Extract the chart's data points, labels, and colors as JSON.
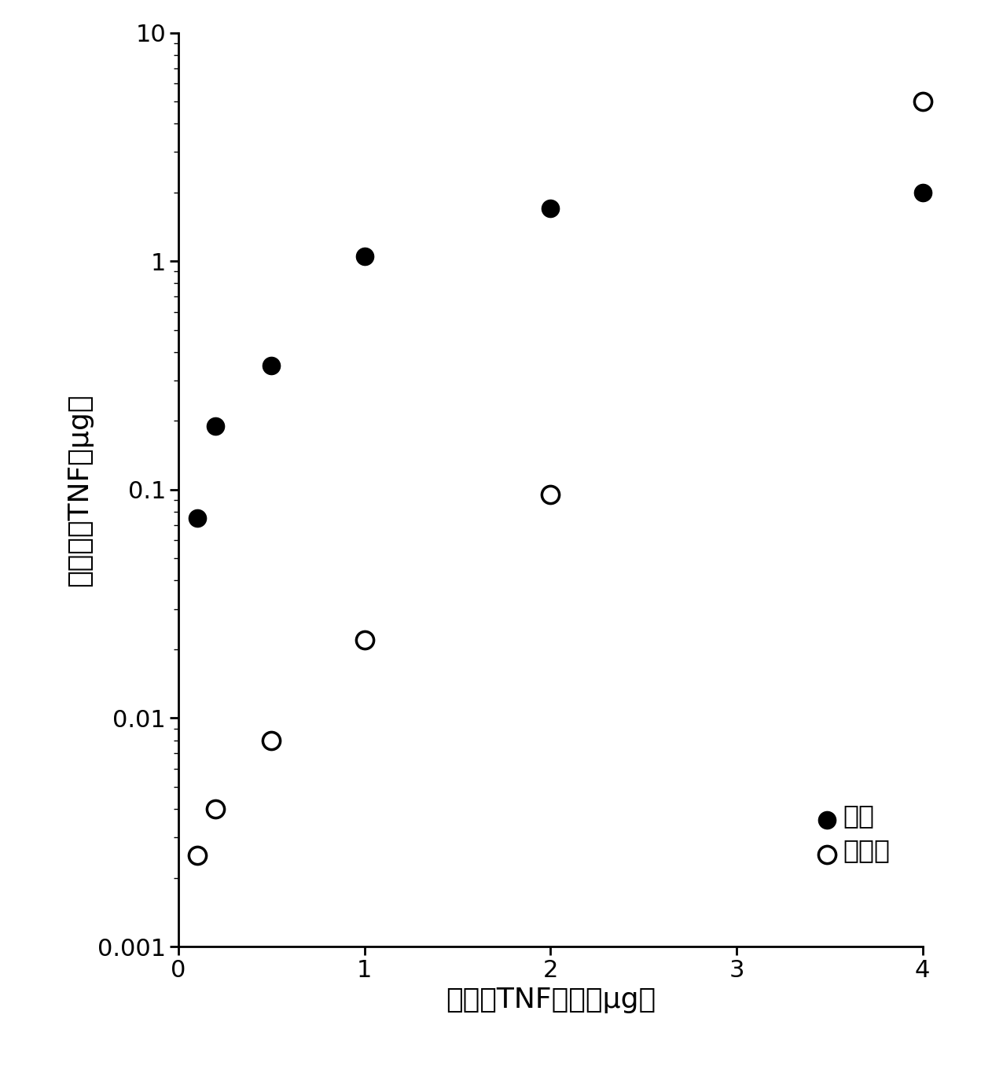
{
  "pellet_x": [
    0.1,
    0.2,
    0.5,
    1.0,
    2.0,
    4.0
  ],
  "pellet_y": [
    0.075,
    0.19,
    0.35,
    1.05,
    1.7,
    2.0
  ],
  "supernatant_x": [
    0.1,
    0.2,
    0.5,
    1.0,
    2.0,
    4.0
  ],
  "supernatant_y": [
    0.0025,
    0.004,
    0.008,
    0.022,
    0.095,
    5.0
  ],
  "xlabel": "加入的TNF质量（μg）",
  "ylabel": "检测到的TNF（μg）",
  "legend_pellet": "小球",
  "legend_supernatant": "上清液",
  "xlim": [
    0,
    4.0
  ],
  "ylim_log": [
    0.001,
    10
  ],
  "background_color": "#ffffff",
  "marker_size": 16,
  "label_fontsize": 26,
  "tick_fontsize": 22,
  "legend_fontsize": 24
}
